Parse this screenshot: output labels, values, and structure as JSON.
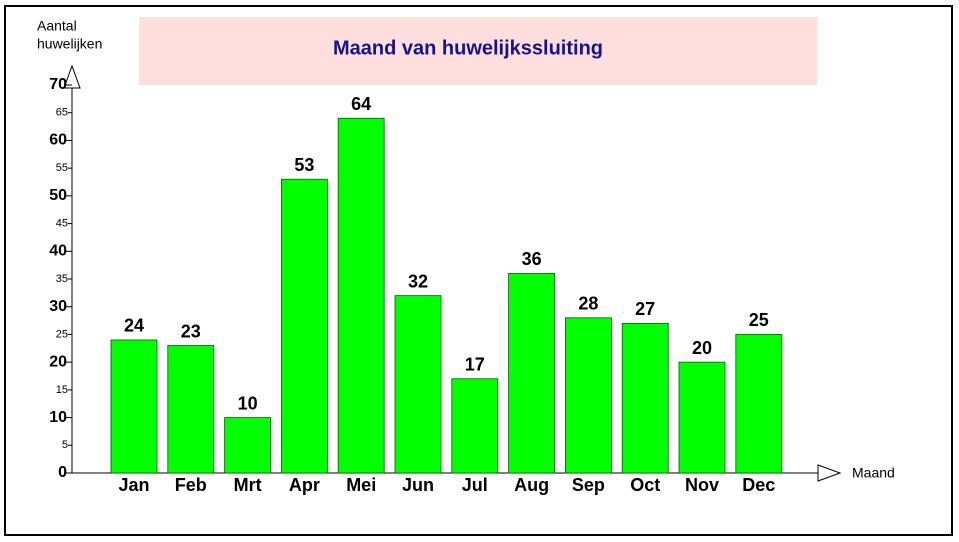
{
  "chart_data": {
    "type": "bar",
    "title": "Maand van huwelijkssluiting",
    "y_label": [
      "Aantal",
      "huwelijken"
    ],
    "x_label": "Maand",
    "categories": [
      "Jan",
      "Feb",
      "Mrt",
      "Apr",
      "Mei",
      "Jun",
      "Jul",
      "Aug",
      "Sep",
      "Oct",
      "Nov",
      "Dec"
    ],
    "values": [
      24,
      23,
      10,
      53,
      64,
      32,
      17,
      36,
      28,
      27,
      20,
      25
    ],
    "color": "#00ff00",
    "ylim": [
      0,
      70
    ],
    "yticks": [
      0,
      5,
      10,
      15,
      20,
      25,
      30,
      35,
      40,
      45,
      50,
      55,
      60,
      65,
      70
    ]
  }
}
